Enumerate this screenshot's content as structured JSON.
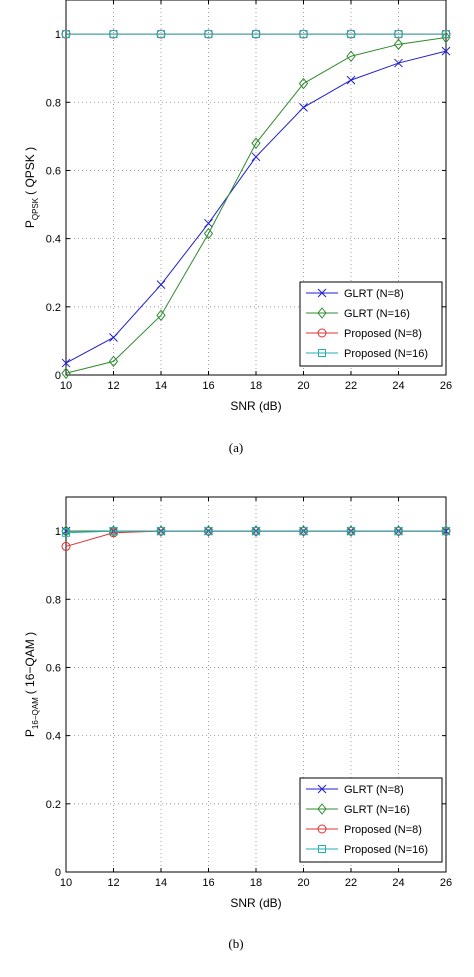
{
  "chart_data": [
    {
      "type": "line",
      "caption": "(a)",
      "xlabel": "SNR (dB)",
      "ylabel_main": "P",
      "ylabel_sub": "QPSK",
      "ylabel_tail": "( QPSK )",
      "xlim": [
        10,
        26
      ],
      "ylim": [
        0,
        1.1
      ],
      "x": [
        10,
        12,
        14,
        16,
        18,
        20,
        22,
        24,
        26
      ],
      "xticks": [
        "10",
        "12",
        "14",
        "16",
        "18",
        "20",
        "22",
        "24",
        "26"
      ],
      "yticks": [
        0,
        0.2,
        0.4,
        0.6,
        0.8,
        1
      ],
      "ytick_labels": [
        "0",
        "0.2",
        "0.4",
        "0.6",
        "0.8",
        "1"
      ],
      "grid": true,
      "legend_position": "bottom-right",
      "series": [
        {
          "name": "GLRT (N=8)",
          "color": "#1f1fd0",
          "marker": "x",
          "values": [
            0.035,
            0.11,
            0.265,
            0.445,
            0.64,
            0.785,
            0.865,
            0.915,
            0.95
          ]
        },
        {
          "name": "GLRT (N=16)",
          "color": "#2e8b2e",
          "marker": "diamond",
          "values": [
            0.005,
            0.04,
            0.175,
            0.415,
            0.68,
            0.855,
            0.935,
            0.97,
            0.99
          ]
        },
        {
          "name": "Proposed (N=8)",
          "color": "#e03030",
          "marker": "circle",
          "values": [
            1,
            1,
            1,
            1,
            1,
            1,
            1,
            1,
            1
          ]
        },
        {
          "name": "Proposed (N=16)",
          "color": "#20b0b0",
          "marker": "square",
          "values": [
            1,
            1,
            1,
            1,
            1,
            1,
            1,
            1,
            1
          ]
        }
      ]
    },
    {
      "type": "line",
      "caption": "(b)",
      "xlabel": "SNR (dB)",
      "ylabel_main": "P",
      "ylabel_sub": "16−QAM",
      "ylabel_tail": "( 16−QAM )",
      "xlim": [
        10,
        26
      ],
      "ylim": [
        0,
        1.1
      ],
      "x": [
        10,
        12,
        14,
        16,
        18,
        20,
        22,
        24,
        26
      ],
      "xticks": [
        "10",
        "12",
        "14",
        "16",
        "18",
        "20",
        "22",
        "24",
        "26"
      ],
      "yticks": [
        0,
        0.2,
        0.4,
        0.6,
        0.8,
        1
      ],
      "ytick_labels": [
        "0",
        "0.2",
        "0.4",
        "0.6",
        "0.8",
        "1"
      ],
      "grid": true,
      "legend_position": "bottom-right",
      "series": [
        {
          "name": "GLRT (N=8)",
          "color": "#1f1fd0",
          "marker": "x",
          "values": [
            1,
            1,
            1,
            1,
            1,
            1,
            1,
            1,
            1
          ]
        },
        {
          "name": "GLRT (N=16)",
          "color": "#2e8b2e",
          "marker": "diamond",
          "values": [
            1,
            1,
            1,
            1,
            1,
            1,
            1,
            1,
            1
          ]
        },
        {
          "name": "Proposed (N=8)",
          "color": "#e03030",
          "marker": "circle",
          "values": [
            0.955,
            0.995,
            1,
            1,
            1,
            1,
            1,
            1,
            1
          ]
        },
        {
          "name": "Proposed (N=16)",
          "color": "#20b0b0",
          "marker": "square",
          "values": [
            0.995,
            1,
            1,
            1,
            1,
            1,
            1,
            1,
            1
          ]
        }
      ]
    }
  ]
}
